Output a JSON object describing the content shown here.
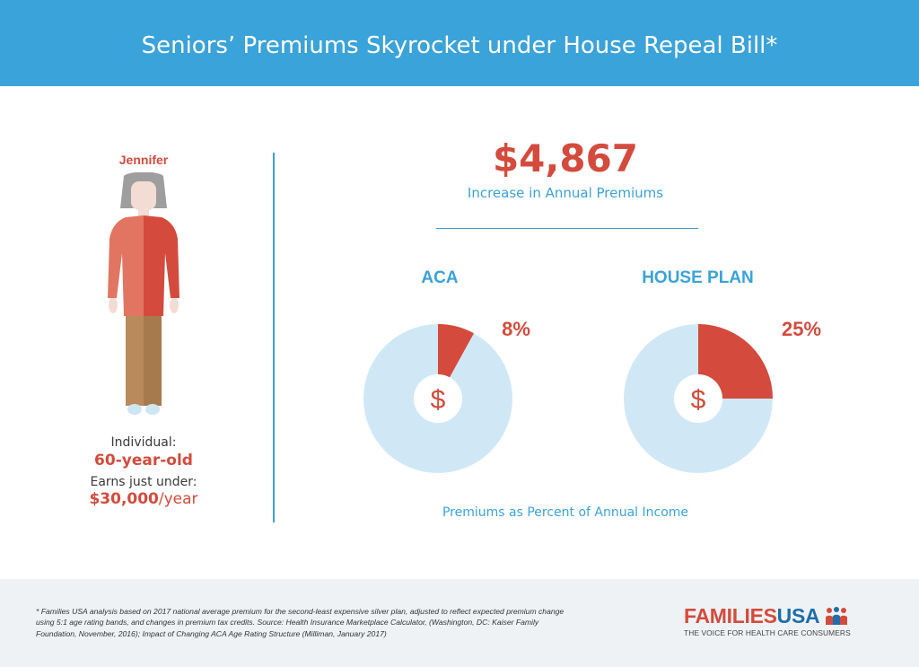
{
  "header": {
    "title": "Seniors’ Premiums Skyrocket under House Repeal Bill*"
  },
  "person": {
    "name": "Jennifer",
    "label_type": "Individual:",
    "age": "60-year-old",
    "label_income": "Earns just under:",
    "income": "$30,000",
    "income_per": "/year"
  },
  "headline": {
    "value": "$4,867",
    "label": "Increase in Annual Premiums"
  },
  "chart_data": {
    "type": "pie",
    "caption": "Premiums as Percent of Annual Income",
    "charts": [
      {
        "name": "ACA",
        "value": 8,
        "value_label": "8%",
        "center_symbol": "$"
      },
      {
        "name": "HOUSE PLAN",
        "value": 25,
        "value_label": "25%",
        "center_symbol": "$"
      }
    ],
    "colors": {
      "slice": "#d44b3d",
      "remainder": "#d0e8f5",
      "center": "#ffffff"
    }
  },
  "footer": {
    "footnote": "* Families USA analysis based on 2017 national average premium for the second-least expensive silver plan, adjusted to reflect expected premium change using 5:1 age rating bands, and changes in premium tax credits. Source: Health Insurance Marketplace Calculator, (Washington, DC: Kaiser Family Foundation, November, 2016); Impact of Changing ACA Age Rating Structure (Milliman, January 2017)",
    "logo_part1": "FAMILIES",
    "logo_part2": "USA",
    "tagline": "THE VOICE FOR HEALTH CARE CONSUMERS"
  },
  "colors": {
    "accent_blue": "#3aa3d9",
    "accent_red": "#d44b3d",
    "footer_bg": "#eff2f5"
  }
}
